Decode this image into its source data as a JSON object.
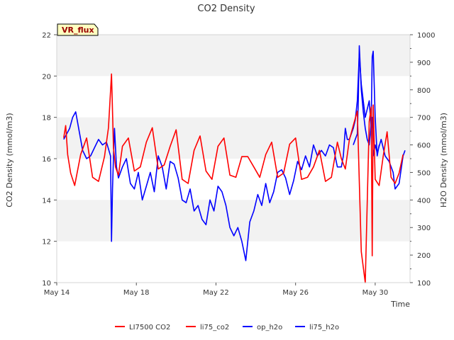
{
  "chart_data": {
    "type": "line",
    "title": "CO2 Density",
    "badge": "VR_flux",
    "xlabel": "Time",
    "ylabel_left": "CO2 Density (mmol/m3)",
    "ylabel_right": "H2O Density (mmol/m3)",
    "x_range_days": [
      14,
      31.75
    ],
    "x_ticks": [
      {
        "day": 14,
        "label": "May 14"
      },
      {
        "day": 18,
        "label": "May 18"
      },
      {
        "day": 22,
        "label": "May 22"
      },
      {
        "day": 26,
        "label": "May 26"
      },
      {
        "day": 30,
        "label": "May 30"
      }
    ],
    "ylim_left": [
      10,
      22
    ],
    "yticks_left": [
      10,
      12,
      14,
      16,
      18,
      20,
      22
    ],
    "ylim_right": [
      100,
      1000
    ],
    "yticks_right": [
      100,
      200,
      300,
      400,
      500,
      600,
      700,
      800,
      900,
      1000
    ],
    "bands": [
      [
        12,
        14
      ],
      [
        16,
        18
      ],
      [
        20,
        22
      ]
    ],
    "series": [
      {
        "name": "LI7500 CO2",
        "color": "#ff0000",
        "axis": "left",
        "x": [],
        "y": []
      },
      {
        "name": "li75_co2",
        "color": "#ff0000",
        "axis": "left",
        "x": [
          14.35,
          14.45,
          14.55,
          14.7,
          14.9,
          15.2,
          15.5,
          15.8,
          16.1,
          16.4,
          16.6,
          16.75,
          16.85,
          16.95,
          17.1,
          17.3,
          17.6,
          17.9,
          18.2,
          18.5,
          18.8,
          19.1,
          19.4,
          19.7,
          20.0,
          20.3,
          20.6,
          20.9,
          21.2,
          21.5,
          21.8,
          22.1,
          22.4,
          22.7,
          23.0,
          23.3,
          23.6,
          23.9,
          24.2,
          24.5,
          24.8,
          25.1,
          25.4,
          25.7,
          26.0,
          26.3,
          26.6,
          26.9,
          27.2,
          27.5,
          27.8,
          28.1,
          28.3,
          28.5,
          28.7,
          28.9,
          29.1,
          29.3,
          29.5,
          29.7,
          29.8,
          29.85,
          29.9,
          30.0,
          30.2,
          30.4,
          30.6,
          30.8,
          31.0,
          31.2,
          31.4
        ],
        "y": [
          17.0,
          17.6,
          16.2,
          15.3,
          14.7,
          16.2,
          17.0,
          15.1,
          14.9,
          16.1,
          17.5,
          20.1,
          16.5,
          15.6,
          15.2,
          16.6,
          17.0,
          15.4,
          15.6,
          16.8,
          17.5,
          15.5,
          15.7,
          16.6,
          17.4,
          15.0,
          14.8,
          16.4,
          17.1,
          15.4,
          15.0,
          16.6,
          17.0,
          15.2,
          15.1,
          16.1,
          16.1,
          15.6,
          15.1,
          16.2,
          16.8,
          15.1,
          15.3,
          16.7,
          17.0,
          15.0,
          15.1,
          15.6,
          16.4,
          14.9,
          15.1,
          16.8,
          16.0,
          15.5,
          16.9,
          17.6,
          18.3,
          11.5,
          10.0,
          17.8,
          18.5,
          11.3,
          18.6,
          15.0,
          14.7,
          16.1,
          17.3,
          15.1,
          14.8,
          15.3,
          16.2
        ]
      },
      {
        "name": "op_h2o",
        "color": "#0000ff",
        "axis": "right",
        "x": [
          14.35,
          14.5,
          14.65,
          14.8,
          14.95,
          15.1,
          15.3,
          15.5,
          15.7,
          15.9,
          16.1,
          16.3,
          16.5,
          16.7,
          16.75,
          16.8,
          16.85,
          16.9,
          17.0,
          17.1,
          17.3,
          17.5,
          17.7,
          17.9,
          18.1,
          18.3,
          18.5,
          18.7,
          18.9,
          19.1,
          19.3,
          19.5,
          19.7,
          19.9,
          20.1,
          20.3,
          20.5,
          20.7,
          20.9,
          21.1,
          21.3,
          21.5,
          21.7,
          21.9,
          22.1,
          22.3,
          22.5,
          22.7,
          22.9,
          23.1,
          23.3,
          23.5,
          23.7,
          23.9,
          24.1,
          24.3,
          24.5,
          24.7,
          24.9,
          25.1,
          25.3,
          25.5,
          25.7,
          25.9,
          26.1,
          26.3,
          26.5,
          26.7,
          26.9,
          27.1,
          27.3,
          27.5,
          27.7,
          27.9,
          28.1,
          28.3,
          28.4,
          28.5,
          28.6,
          28.7,
          28.8,
          28.9,
          29.0,
          29.1,
          29.2,
          29.3,
          29.5,
          29.7,
          29.8,
          29.85,
          29.9,
          30.0,
          30.1,
          30.3,
          30.5,
          30.7,
          30.9,
          31.0,
          31.2,
          31.4,
          31.5
        ],
        "y": [
          620,
          640,
          660,
          700,
          720,
          660,
          580,
          550,
          560,
          590,
          620,
          600,
          610,
          560,
          250,
          440,
          560,
          660,
          520,
          480,
          520,
          550,
          460,
          440,
          500,
          400,
          450,
          500,
          430,
          560,
          520,
          440,
          540,
          530,
          480,
          400,
          390,
          440,
          360,
          380,
          330,
          310,
          400,
          360,
          450,
          430,
          380,
          300,
          270,
          300,
          250,
          180,
          320,
          360,
          420,
          380,
          460,
          390,
          430,
          500,
          510,
          480,
          420,
          470,
          540,
          510,
          560,
          520,
          600,
          560,
          580,
          560,
          600,
          590,
          520,
          520,
          560,
          660,
          620,
          620,
          640,
          660,
          690,
          760,
          930,
          820,
          700,
          760,
          660,
          700,
          560,
          600,
          570,
          620,
          560,
          540,
          500,
          440,
          460,
          560,
          580
        ]
      },
      {
        "name": "li75_h2o",
        "color": "#0000ff",
        "axis": "right",
        "x": [
          28.9,
          29.0,
          29.1,
          29.15,
          29.2,
          29.3,
          29.4,
          29.5,
          29.6,
          29.7,
          29.8,
          29.85,
          29.9,
          30.0,
          30.1,
          30.2
        ],
        "y": [
          600,
          620,
          640,
          760,
          960,
          800,
          720,
          660,
          620,
          600,
          680,
          920,
          940,
          700,
          560,
          600
        ]
      }
    ],
    "legend": [
      "LI7500 CO2",
      "li75_co2",
      "op_h2o",
      "li75_h2o"
    ],
    "legend_position": "bottom"
  }
}
